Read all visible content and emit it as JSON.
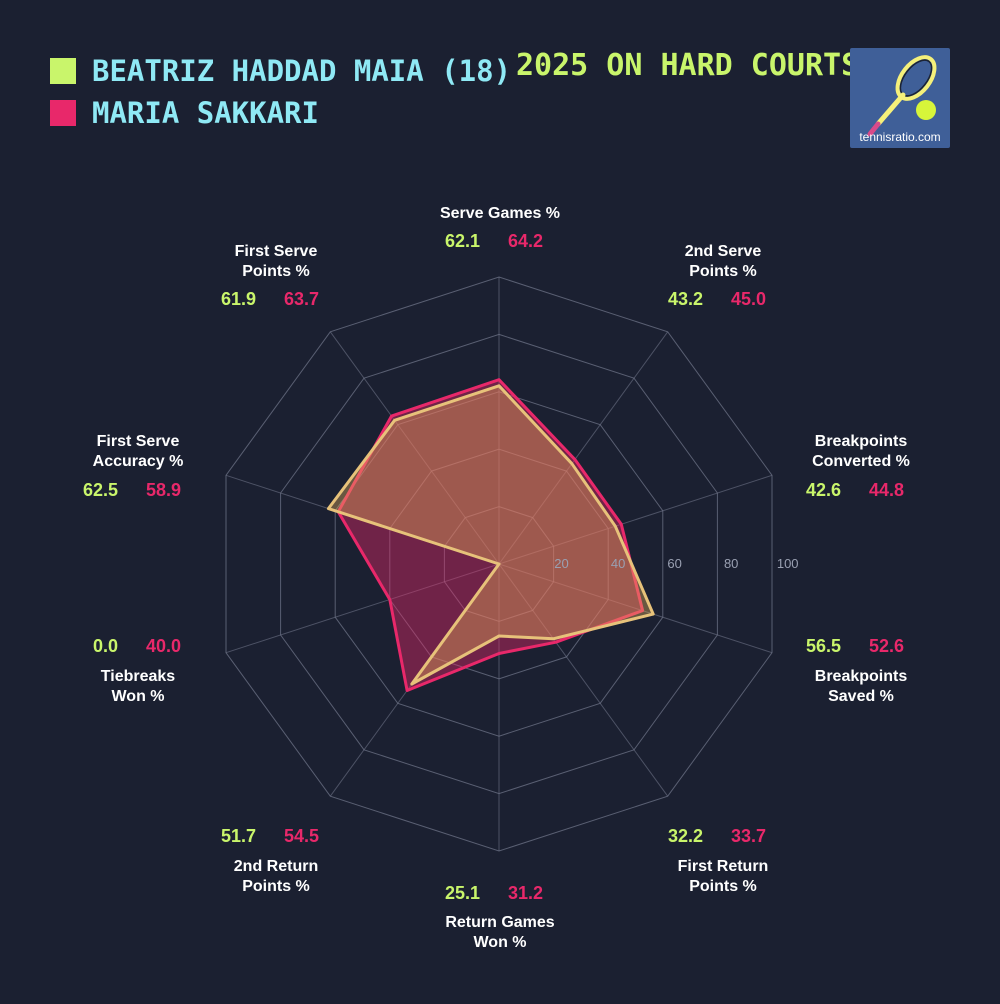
{
  "title": "2025 ON HARD COURTS",
  "logo_text": "tennisratio.com",
  "colors": {
    "background": "#1b2031",
    "player1": "#c9f56b",
    "player2": "#e8286a",
    "legend_text": "#8fe9f5",
    "grid": "#6f7488",
    "category_text": "#ffffff"
  },
  "chart_data": {
    "type": "radar",
    "scale": {
      "min": 0,
      "max": 100,
      "rings": [
        20,
        40,
        60,
        80,
        100
      ],
      "tick_labels": [
        "20",
        "40",
        "60",
        "80",
        "100"
      ]
    },
    "categories": [
      {
        "label": [
          "Serve Games %"
        ],
        "p1": "62.1",
        "p2": "64.2"
      },
      {
        "label": [
          "2nd Serve",
          "Points %"
        ],
        "p1": "43.2",
        "p2": "45.0"
      },
      {
        "label": [
          "Breakpoints",
          "Converted %"
        ],
        "p1": "42.6",
        "p2": "44.8"
      },
      {
        "label": [
          "Breakpoints",
          "Saved %"
        ],
        "p1": "56.5",
        "p2": "52.6"
      },
      {
        "label": [
          "First Return",
          "Points %"
        ],
        "p1": "32.2",
        "p2": "33.7"
      },
      {
        "label": [
          "Return Games",
          "Won %"
        ],
        "p1": "25.1",
        "p2": "31.2"
      },
      {
        "label": [
          "2nd Return",
          "Points %"
        ],
        "p1": "51.7",
        "p2": "54.5"
      },
      {
        "label": [
          "Tiebreaks",
          "Won %"
        ],
        "p1": "0.0",
        "p2": "40.0"
      },
      {
        "label": [
          "First Serve",
          "Accuracy %"
        ],
        "p1": "62.5",
        "p2": "58.9"
      },
      {
        "label": [
          "First Serve",
          "Points %"
        ],
        "p1": "61.9",
        "p2": "63.7"
      }
    ],
    "series": [
      {
        "name": "BEATRIZ HADDAD MAIA (18)",
        "values": [
          62.1,
          43.2,
          42.6,
          56.5,
          32.2,
          25.1,
          51.7,
          0.0,
          62.5,
          61.9
        ]
      },
      {
        "name": "MARIA SAKKARI",
        "values": [
          64.2,
          45.0,
          44.8,
          52.6,
          33.7,
          31.2,
          54.5,
          40.0,
          58.9,
          63.7
        ]
      }
    ]
  }
}
